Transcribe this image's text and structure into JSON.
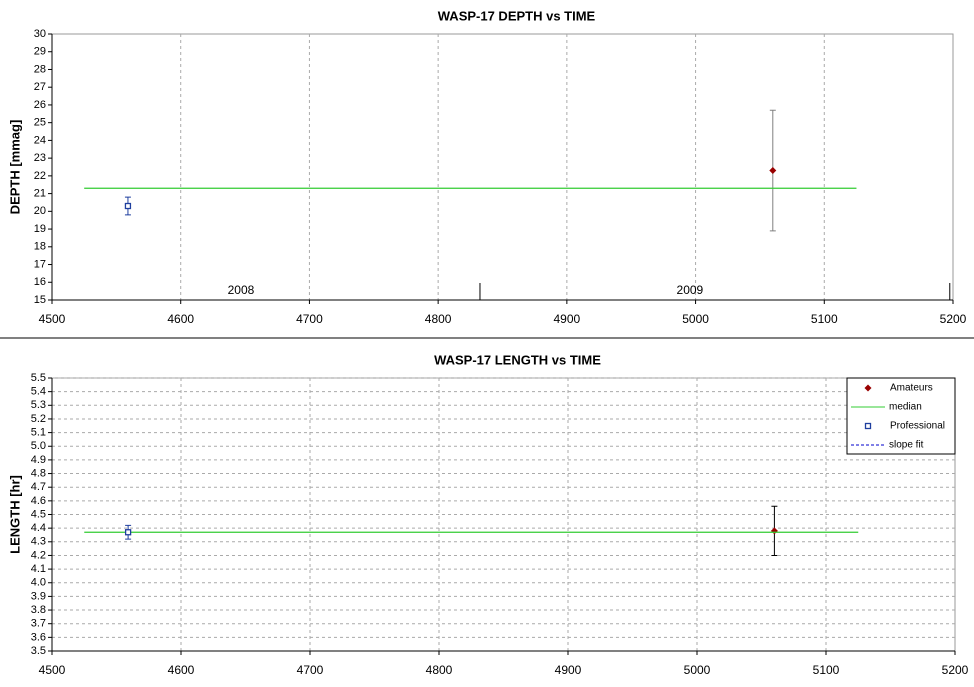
{
  "chart_data": [
    {
      "type": "scatter",
      "title": "WASP-17 DEPTH vs TIME",
      "y_label": "DEPTH [mmag]",
      "xlim": [
        4500,
        5200
      ],
      "xticks": [
        4500,
        4600,
        4700,
        4800,
        4900,
        5000,
        5100,
        5200
      ],
      "ylim": [
        15,
        30
      ],
      "yticks": [
        15,
        16,
        17,
        18,
        19,
        20,
        21,
        22,
        23,
        24,
        25,
        26,
        27,
        28,
        29,
        30
      ],
      "xgrid": true,
      "ygrid": false,
      "year_boundaries": [
        4832.5,
        5197.5
      ],
      "year_labels": [
        "2008",
        "2009"
      ],
      "series": [
        {
          "name": "Amateurs",
          "color": "#990000",
          "marker": "diamond",
          "error_color": "#808080",
          "x": [
            5060
          ],
          "y": [
            22.3
          ],
          "errors": [
            3.4
          ]
        },
        {
          "name": "median",
          "color": "#33cc33",
          "marker": "line",
          "x": [
            4525,
            5125
          ],
          "y": [
            21.3,
            21.3
          ]
        },
        {
          "name": "Professional",
          "color": "#1f3f9f",
          "marker": "square",
          "error_color": "#1f3f9f",
          "x": [
            4559
          ],
          "y": [
            20.3
          ],
          "errors": [
            0.5
          ]
        }
      ]
    },
    {
      "type": "scatter",
      "title": "WASP-17 LENGTH vs TIME",
      "y_label": "LENGTH [hr]",
      "xlim": [
        4500,
        5200
      ],
      "xticks": [
        4500,
        4600,
        4700,
        4800,
        4900,
        5000,
        5100,
        5200
      ],
      "ylim": [
        3.5,
        5.5
      ],
      "yticks": [
        3.5,
        3.6,
        3.7,
        3.8,
        3.9,
        {
          "value": 4,
          "label": "4.0"
        },
        4.1,
        4.2,
        4.3,
        4.4,
        4.5,
        4.6,
        4.7,
        4.8,
        4.9,
        {
          "value": 5,
          "label": "5.0"
        },
        5.1,
        5.2,
        5.3,
        5.4,
        5.5
      ],
      "xgrid": true,
      "ygrid": true,
      "legend": "upper right",
      "series": [
        {
          "name": "Amateurs",
          "color": "#990000",
          "marker": "diamond",
          "error_color": "#000000",
          "x": [
            5060
          ],
          "y": [
            4.38
          ],
          "errors": [
            0.18
          ]
        },
        {
          "name": "median",
          "color": "#33cc33",
          "marker": "line",
          "x": [
            4525,
            5125
          ],
          "y": [
            4.37,
            4.37
          ]
        },
        {
          "name": "Professional",
          "color": "#1f3f9f",
          "marker": "square",
          "error_color": "#1f3f9f",
          "x": [
            4559
          ],
          "y": [
            4.37
          ],
          "errors": [
            0.05
          ]
        },
        {
          "name": "slope fit",
          "color": "#0000cc",
          "marker": "dashed-line"
        }
      ]
    }
  ]
}
